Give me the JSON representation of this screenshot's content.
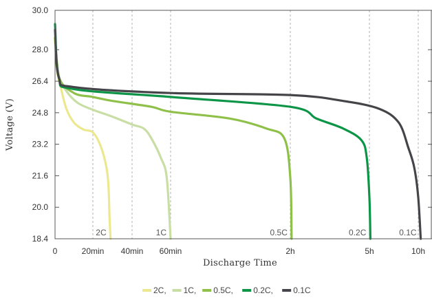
{
  "chart_data": {
    "type": "line",
    "xlabel": "Discharge Time",
    "ylabel": "Voltage (V)",
    "ylim": [
      18.4,
      30.0
    ],
    "y_ticks": [
      "18.4",
      "20.0",
      "21.6",
      "23.2",
      "24.8",
      "26.4",
      "28.0",
      "30.0"
    ],
    "x_ticks": [
      "0",
      "20min",
      "40min",
      "60min",
      "2h",
      "5h",
      "10h"
    ],
    "x_scale": "nonlinear (minutes up to 60, then hours)",
    "grid": "dashed vertical lines at 20min, 40min, 60min, 2h, 5h, 10h",
    "legend_position": "bottom-center",
    "series": [
      {
        "name": "2C",
        "color": "#ece88f",
        "end_label": "2C",
        "points": [
          [
            "0",
            28.6
          ],
          [
            "1min",
            27.0
          ],
          [
            "3min",
            26.1
          ],
          [
            "6min",
            25.0
          ],
          [
            "10min",
            24.3
          ],
          [
            "15min",
            23.95
          ],
          [
            "20min",
            23.8
          ],
          [
            "24min",
            23.1
          ],
          [
            "27min",
            22.0
          ],
          [
            "28min",
            21.0
          ],
          [
            "28.5min",
            19.5
          ],
          [
            "29min",
            18.4
          ]
        ]
      },
      {
        "name": "1C",
        "color": "#c8dea4",
        "end_label": "1C",
        "points": [
          [
            "0",
            28.6
          ],
          [
            "2min",
            26.7
          ],
          [
            "6min",
            25.9
          ],
          [
            "12min",
            25.3
          ],
          [
            "20min",
            24.95
          ],
          [
            "30min",
            24.6
          ],
          [
            "40min",
            24.2
          ],
          [
            "46min",
            24.0
          ],
          [
            "50min",
            23.5
          ],
          [
            "55min",
            22.5
          ],
          [
            "58min",
            21.5
          ],
          [
            "60min",
            18.4
          ]
        ]
      },
      {
        "name": "0.5C",
        "color": "#8fc04a",
        "end_label": "0.5C",
        "points": [
          [
            "0",
            28.6
          ],
          [
            "2min",
            26.6
          ],
          [
            "10min",
            25.8
          ],
          [
            "20min",
            25.6
          ],
          [
            "30min",
            25.4
          ],
          [
            "50min",
            25.1
          ],
          [
            "60min",
            24.85
          ],
          [
            "1.5h",
            24.5
          ],
          [
            "1.8h",
            24.0
          ],
          [
            "1.95h",
            23.5
          ],
          [
            "2h",
            21.5
          ],
          [
            "2.05h",
            18.4
          ]
        ]
      },
      {
        "name": "0.2C",
        "color": "#0c9547",
        "end_label": "0.2C",
        "points": [
          [
            "0",
            29.3
          ],
          [
            "2min",
            26.6
          ],
          [
            "10min",
            26.0
          ],
          [
            "60min",
            25.6
          ],
          [
            "2h",
            25.1
          ],
          [
            "3h",
            24.5
          ],
          [
            "4h",
            24.0
          ],
          [
            "4.7h",
            23.4
          ],
          [
            "4.9h",
            22.5
          ],
          [
            "5h",
            20.5
          ],
          [
            "5.1h",
            18.4
          ]
        ]
      },
      {
        "name": "0.1C",
        "color": "#444449",
        "end_label": "0.1C",
        "points": [
          [
            "0",
            29.0
          ],
          [
            "2min",
            26.6
          ],
          [
            "10min",
            26.1
          ],
          [
            "60min",
            25.8
          ],
          [
            "2h",
            25.7
          ],
          [
            "4h",
            25.4
          ],
          [
            "6h",
            25.0
          ],
          [
            "8h",
            24.3
          ],
          [
            "9h",
            23.0
          ],
          [
            "9.6h",
            22.0
          ],
          [
            "10h",
            20.5
          ],
          [
            "10.2h",
            18.4
          ]
        ]
      }
    ],
    "legend": [
      {
        "label": "2C,",
        "color": "#ece88f"
      },
      {
        "label": "1C,",
        "color": "#c8dea4"
      },
      {
        "label": "0.5C,",
        "color": "#8fc04a"
      },
      {
        "label": "0.2C,",
        "color": "#0c9547"
      },
      {
        "label": "0.1C",
        "color": "#444449"
      }
    ]
  }
}
